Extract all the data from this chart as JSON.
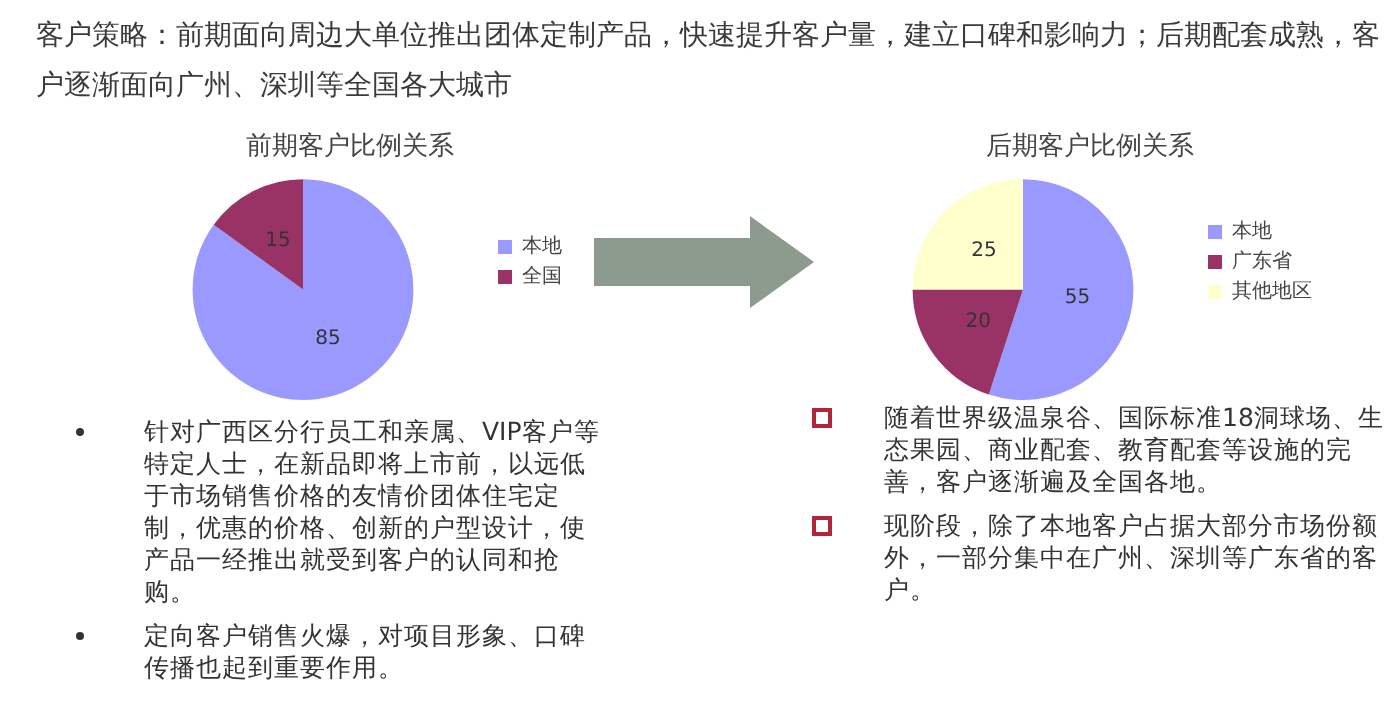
{
  "chart_data": [
    {
      "type": "other",
      "title": "客户策略：前期面向周边大单位推出团体定制产品，快速提升客户量，建立口碑和影响力；后期配套成熟，客户逐渐面向广州、深圳等全国各大城市"
    },
    {
      "type": "pie",
      "title": "前期客户比例关系",
      "categories": [
        "本地",
        "全国"
      ],
      "values": [
        85,
        15
      ],
      "colors": [
        "#9999ff",
        "#993366"
      ],
      "legend": "right",
      "data_labels": true,
      "annotations": [
        "针对广西区分行员工和亲属、VIP客户等特定人士，在新品即将上市前，以远低于市场销售价格的友情价团体住宅定制，优惠的价格、创新的户型设计，使产品一经推出就受到客户的认同和抢购。",
        "定向客户销售火爆，对项目形象、口碑传播也起到重要作用。"
      ]
    },
    {
      "type": "pie",
      "title": "后期客户比例关系",
      "categories": [
        "本地",
        "广东省",
        "其他地区"
      ],
      "values": [
        55,
        20,
        25
      ],
      "colors": [
        "#9999ff",
        "#993366",
        "#ffffcc"
      ],
      "legend": "right",
      "data_labels": true,
      "annotations": [
        "随着世界级温泉谷、国际标准18洞球场、生态果园、商业配套、教育配套等设施的完善，客户逐渐遍及全国各地。",
        "现阶段，除了本地客户占据大部分市场份额外，一部分集中在广州、深圳等广东省的客户。"
      ]
    }
  ]
}
